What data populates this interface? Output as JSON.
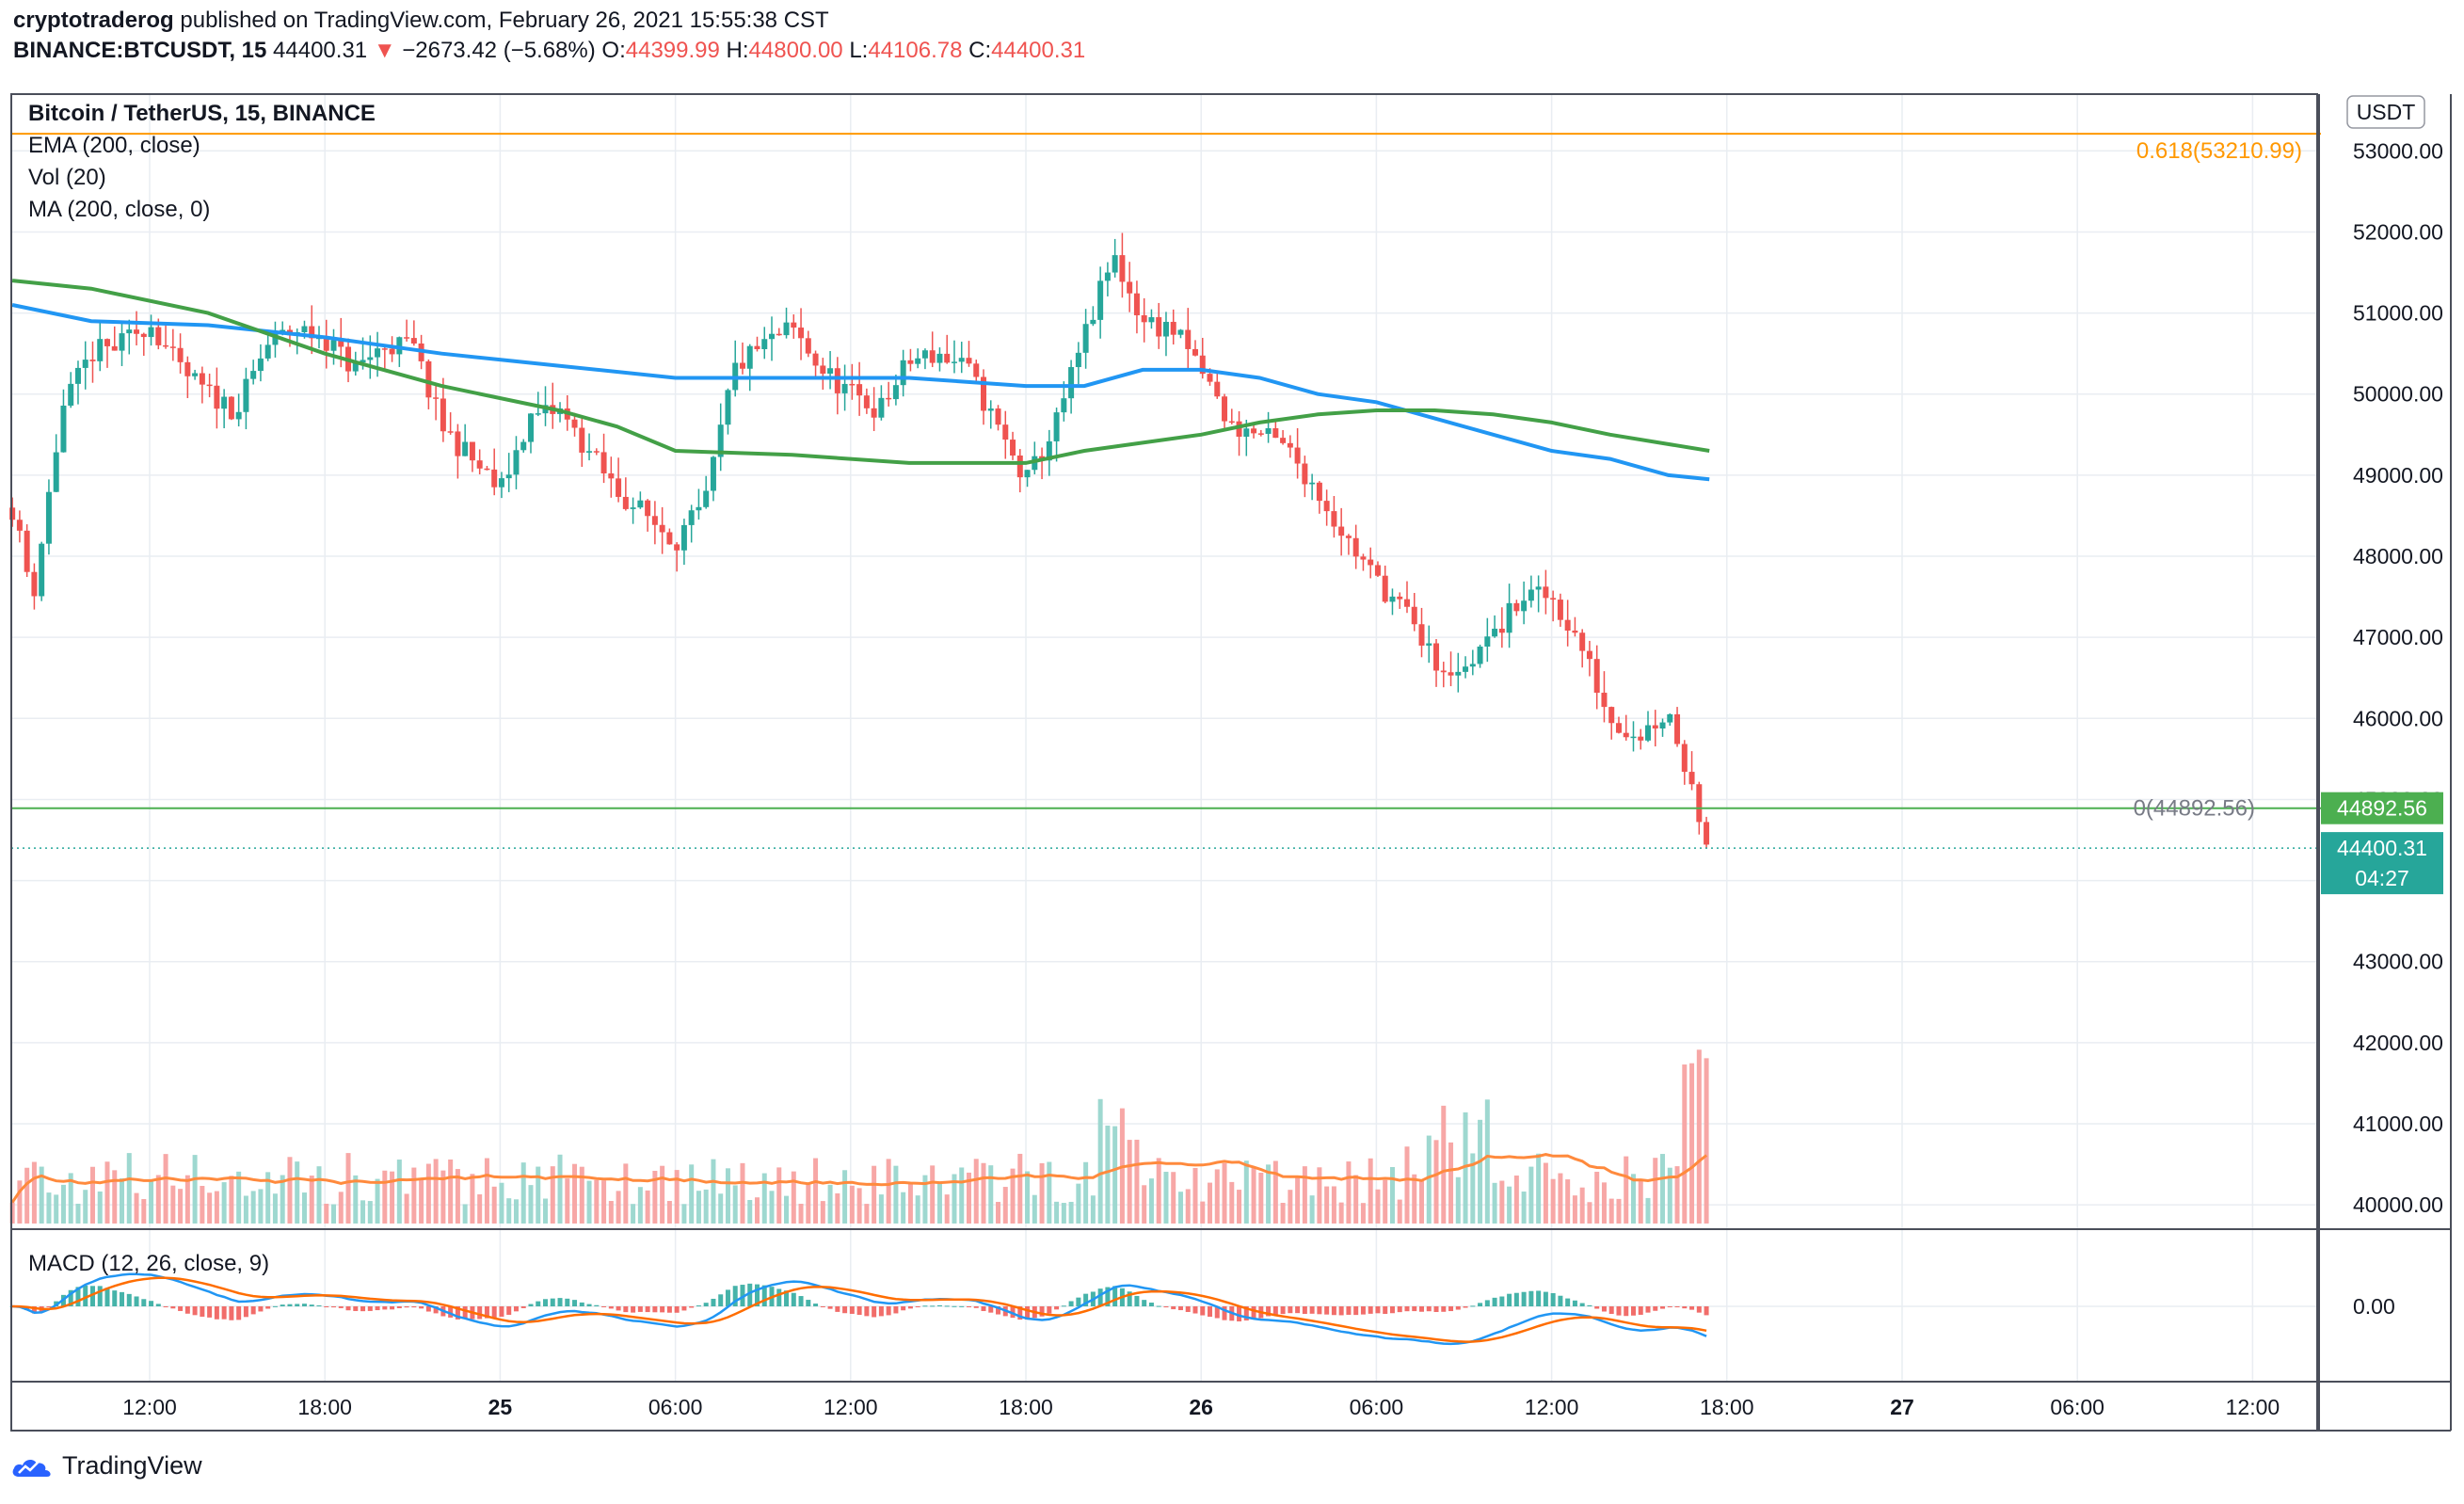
{
  "header": {
    "author": "cryptotraderog",
    "published_text": "published on TradingView.com, February 26, 2021 15:55:38 CST",
    "symbol": "BINANCE:BTCUSDT, 15",
    "last": "44400.31",
    "change_arrow": "▼",
    "change": "−2673.42 (−5.68%)",
    "o_label": "O:",
    "o": "44399.99",
    "h_label": "H:",
    "h": "44800.00",
    "l_label": "L:",
    "l": "44106.78",
    "c_label": "C:",
    "c": "44400.31"
  },
  "legend": {
    "title": "Bitcoin / TetherUS, 15, BINANCE",
    "ema": "EMA (200, close)",
    "vol": "Vol (20)",
    "ma": "MA (200, close, 0)",
    "macd": "MACD (12, 26, close, 9)"
  },
  "currency_badge": "USDT",
  "fib": {
    "upper_label": "0.618(53210.99)",
    "upper_price": 53210.99,
    "lower_label": "0(44892.56)",
    "lower_price": 44892.56,
    "lower_tag": "44892.56"
  },
  "price_tag": {
    "price": "44400.31",
    "timer": "04:27",
    "value": 44400.31
  },
  "footer": {
    "brand": "TradingView"
  },
  "colors": {
    "up": "#26a69a",
    "down": "#ef5350",
    "ema": "#2196f3",
    "ma": "#43a047",
    "fib_upper": "#ff9800",
    "fib_lower": "#4caf50",
    "vol_ma": "#ff8a3d",
    "macd": "#2196f3",
    "signal": "#ff6d00"
  },
  "chart_data": {
    "type": "candlestick",
    "title": "Bitcoin / TetherUS, 15, BINANCE",
    "interval": "15m",
    "ylim": [
      39700,
      53700
    ],
    "price_ticks": [
      "40000.00",
      "41000.00",
      "42000.00",
      "43000.00",
      "44000.00",
      "45000.00",
      "46000.00",
      "47000.00",
      "48000.00",
      "49000.00",
      "50000.00",
      "51000.00",
      "52000.00",
      "53000.00"
    ],
    "time_ticks": [
      {
        "label": "12:00",
        "hour": 12,
        "bold": false
      },
      {
        "label": "18:00",
        "hour": 18,
        "bold": false
      },
      {
        "label": "25",
        "hour": 24,
        "bold": true
      },
      {
        "label": "06:00",
        "hour": 30,
        "bold": false
      },
      {
        "label": "12:00",
        "hour": 36,
        "bold": false
      },
      {
        "label": "18:00",
        "hour": 42,
        "bold": false
      },
      {
        "label": "26",
        "hour": 48,
        "bold": true
      },
      {
        "label": "06:00",
        "hour": 54,
        "bold": false
      },
      {
        "label": "12:00",
        "hour": 60,
        "bold": false
      },
      {
        "label": "18:00",
        "hour": 66,
        "bold": false
      },
      {
        "label": "27",
        "hour": 72,
        "bold": true
      },
      {
        "label": "06:00",
        "hour": 78,
        "bold": false
      },
      {
        "label": "12:00",
        "hour": 84,
        "bold": false
      }
    ],
    "price_path": [
      [
        7.3,
        48600
      ],
      [
        8,
        47500
      ],
      [
        9,
        49800
      ],
      [
        10,
        50500
      ],
      [
        11,
        50600
      ],
      [
        12,
        50900
      ],
      [
        13,
        50300
      ],
      [
        14,
        50000
      ],
      [
        15,
        49800
      ],
      [
        16,
        50600
      ],
      [
        17,
        50800
      ],
      [
        18,
        50700
      ],
      [
        19,
        50300
      ],
      [
        20,
        50600
      ],
      [
        21,
        50600
      ],
      [
        22,
        49600
      ],
      [
        23,
        49200
      ],
      [
        24,
        48800
      ],
      [
        25,
        49700
      ],
      [
        26,
        49800
      ],
      [
        27,
        49300
      ],
      [
        28,
        48800
      ],
      [
        29,
        48500
      ],
      [
        30,
        48200
      ],
      [
        31,
        48600
      ],
      [
        32,
        50300
      ],
      [
        33,
        50600
      ],
      [
        34,
        50800
      ],
      [
        35,
        50300
      ],
      [
        36,
        50000
      ],
      [
        37,
        49800
      ],
      [
        38,
        50400
      ],
      [
        39,
        50500
      ],
      [
        40,
        50300
      ],
      [
        41,
        49600
      ],
      [
        42,
        48900
      ],
      [
        43,
        49600
      ],
      [
        44,
        50700
      ],
      [
        45,
        51700
      ],
      [
        46,
        50900
      ],
      [
        47,
        50800
      ],
      [
        48,
        50300
      ],
      [
        49,
        49600
      ],
      [
        50,
        49500
      ],
      [
        51,
        49300
      ],
      [
        52,
        48800
      ],
      [
        53,
        48200
      ],
      [
        54,
        47700
      ],
      [
        55,
        47300
      ],
      [
        56,
        46700
      ],
      [
        57,
        46600
      ],
      [
        58,
        47000
      ],
      [
        59,
        47500
      ],
      [
        60,
        47500
      ],
      [
        61,
        46900
      ],
      [
        62,
        46000
      ],
      [
        63,
        45800
      ],
      [
        64,
        46100
      ],
      [
        65,
        44900
      ],
      [
        65.4,
        44400
      ]
    ],
    "ema200_path": [
      [
        7.3,
        51100
      ],
      [
        10,
        50900
      ],
      [
        14,
        50850
      ],
      [
        18,
        50700
      ],
      [
        22,
        50500
      ],
      [
        26,
        50350
      ],
      [
        30,
        50200
      ],
      [
        34,
        50200
      ],
      [
        38,
        50200
      ],
      [
        42,
        50100
      ],
      [
        44,
        50100
      ],
      [
        46,
        50300
      ],
      [
        48,
        50300
      ],
      [
        50,
        50200
      ],
      [
        52,
        50000
      ],
      [
        54,
        49900
      ],
      [
        56,
        49700
      ],
      [
        58,
        49500
      ],
      [
        60,
        49300
      ],
      [
        62,
        49200
      ],
      [
        64,
        49000
      ],
      [
        65.4,
        48950
      ]
    ],
    "ma200_path": [
      [
        7.3,
        51400
      ],
      [
        10,
        51300
      ],
      [
        14,
        51000
      ],
      [
        18,
        50500
      ],
      [
        22,
        50100
      ],
      [
        26,
        49800
      ],
      [
        28,
        49600
      ],
      [
        30,
        49300
      ],
      [
        34,
        49250
      ],
      [
        38,
        49150
      ],
      [
        42,
        49150
      ],
      [
        44,
        49300
      ],
      [
        46,
        49400
      ],
      [
        48,
        49500
      ],
      [
        50,
        49650
      ],
      [
        52,
        49750
      ],
      [
        54,
        49800
      ],
      [
        56,
        49800
      ],
      [
        58,
        49750
      ],
      [
        60,
        49650
      ],
      [
        62,
        49500
      ],
      [
        65.4,
        49300
      ]
    ],
    "volume_note": "Vol (20) histogram drawn in lower pane with 20-period average line",
    "macd_note": "MACD (12, 26, close, 9) with histogram, MACD line and signal line"
  }
}
